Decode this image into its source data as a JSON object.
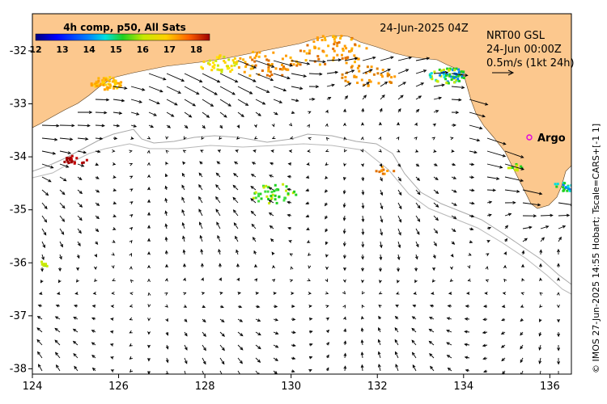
{
  "map": {
    "composite_label": "4h comp, p50, All Sats",
    "date_label": "24-Jun-2025 04Z",
    "current_info": {
      "line1": "NRT00 GSL",
      "line2": "24-Jun 00:00Z",
      "line3": "0.5m/s (1kt 24h)"
    },
    "argo_label": "Argo",
    "credit": "© IMOS 27-Jun-2025 14:55 Hobart; Tscale=CARS+[-1 1]",
    "colorbar": {
      "ticks": [
        "12",
        "13",
        "14",
        "15",
        "16",
        "17",
        "18"
      ],
      "min": 12,
      "max": 18
    },
    "axes": {
      "x": {
        "min": 124,
        "max": 136.5,
        "ticks": [
          "124",
          "126",
          "128",
          "130",
          "132",
          "134",
          "136"
        ]
      },
      "y": {
        "min": -38.1,
        "max": -31.3,
        "ticks": [
          "-32",
          "-33",
          "-34",
          "-35",
          "-36",
          "-37",
          "-38"
        ]
      }
    },
    "colors": {
      "land": "#fcc88e",
      "ocean": "#ffffff",
      "arrow": "#000000",
      "argo": "#e000e0",
      "shelf_line": "#a8a8a8"
    }
  }
}
